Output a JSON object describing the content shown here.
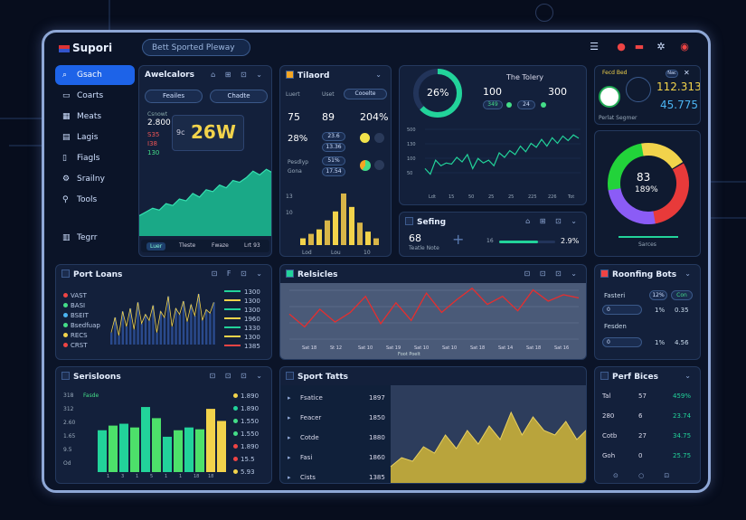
{
  "app": {
    "title": "Supori",
    "search": "Bett Sported Pleway"
  },
  "sidebar": {
    "items": [
      {
        "label": "Gsach",
        "icon": "search-icon",
        "active": true
      },
      {
        "label": "Coarts",
        "icon": "chat-icon"
      },
      {
        "label": "Meats",
        "icon": "calendar-icon"
      },
      {
        "label": "Lagis",
        "icon": "chart-icon"
      },
      {
        "label": "Fiagls",
        "icon": "doc-icon"
      },
      {
        "label": "Srailny",
        "icon": "settings-icon"
      },
      {
        "label": "Tools",
        "icon": "tools-icon"
      },
      {
        "label": "Tegrr",
        "icon": "book-icon"
      }
    ]
  },
  "avail": {
    "title": "Awelcalors",
    "filter1": "Feailes",
    "filter2": "Chadte",
    "small": "Csnowt",
    "val": "2.800",
    "items": [
      "S35",
      "I38",
      "130"
    ],
    "big": "26W",
    "big_prefix": "9c",
    "tabs": [
      "Luer",
      "Tleste",
      "Fwaze",
      "Lrt 93"
    ]
  },
  "tilaord": {
    "title": "Tilaord",
    "cols": [
      "Luert",
      "Uset",
      "Cooelte"
    ],
    "row1": [
      "75",
      "89",
      "204%"
    ],
    "row2": "28%",
    "badges": [
      "23.6",
      "13.36",
      "51%",
      "17.54"
    ],
    "sub": [
      "Pesdlyp",
      "Gona"
    ],
    "xt": [
      "Lod",
      "Lou",
      "10"
    ],
    "yt": [
      "13",
      "10"
    ]
  },
  "donut_top": {
    "value": "26%",
    "title": "The Tolery",
    "stats": [
      "100",
      "300"
    ],
    "chips": [
      "349",
      "24"
    ],
    "ylabels": [
      "500",
      "130",
      "100",
      "50"
    ],
    "xlabels": [
      "Ldt",
      "15",
      "50",
      "25",
      "25",
      "225",
      "226",
      "Tot"
    ]
  },
  "setting": {
    "title": "Sefing",
    "value": "68",
    "sub": "Teatle Note",
    "end": "2.9%",
    "minlabel": "16"
  },
  "tr": {
    "label": "Fecd Bed",
    "v1": "112.313",
    "v2": "45.775",
    "foot": "Perlat Segmer",
    "btn": "Nac"
  },
  "ring": {
    "value": "83",
    "pct": "189%",
    "foot": "Sarces"
  },
  "sport_loans": {
    "title": "Port Loans",
    "labels": [
      "VAST",
      "BASI",
      "BSEIT",
      "Bsedfuap",
      "RECS",
      "CRST"
    ],
    "legend": [
      "1300",
      "1300",
      "1300",
      "1960",
      "1330",
      "1300",
      "1385"
    ]
  },
  "relatives": {
    "title": "Relsicles",
    "xlabels": [
      "Sat 18",
      "St 12",
      "Sat 10",
      "Sat 19",
      "Sat 10",
      "Sat 10",
      "Sat 18",
      "Sat 14",
      "Sat 18",
      "Sat 16"
    ],
    "caption": "Foot Poelt"
  },
  "roofing": {
    "title": "Roonfing Bots",
    "labels": [
      "Fasteri",
      "Fesden"
    ],
    "chips": [
      "12%",
      "Con"
    ],
    "rows": [
      [
        "0",
        "1%",
        "0.35"
      ],
      [
        "0",
        "1%",
        "4.56"
      ]
    ]
  },
  "serisloons": {
    "title": "Serisloons",
    "legend": "Fasde",
    "ylabels": [
      "318",
      "312",
      "2.60",
      "1.65",
      "9.5",
      "Od"
    ],
    "xlabels": [
      "1",
      "3",
      "1",
      "5",
      "1",
      "1",
      "18",
      "18"
    ],
    "vals": [
      "1.890",
      "1.890",
      "1.550",
      "1.550",
      "1.890",
      "15.5",
      "5.93"
    ]
  },
  "sport_tatts": {
    "title": "Sport Tatts",
    "rows": [
      [
        "Fsatice",
        "1897"
      ],
      [
        "Feacer",
        "1850"
      ],
      [
        "Cotde",
        "1880"
      ],
      [
        "Fasi",
        "1860"
      ],
      [
        "Cists",
        "1385"
      ]
    ]
  },
  "perf": {
    "title": "Perf Bices",
    "rows": [
      [
        "Tal",
        "57",
        "459%"
      ],
      [
        "280",
        "6",
        "23.74"
      ],
      [
        "Cotb",
        "27",
        "34.75"
      ],
      [
        "Goh",
        "0",
        "25.75"
      ]
    ]
  },
  "chart_data": [
    {
      "type": "area",
      "title": "Awelcalors",
      "values": [
        22,
        26,
        30,
        28,
        35,
        33,
        40,
        38,
        46,
        42,
        50,
        48,
        55,
        52,
        60,
        58,
        63,
        70,
        66,
        72,
        68
      ]
    },
    {
      "type": "bar",
      "title": "Tilaord",
      "values": [
        6,
        10,
        14,
        22,
        30,
        46,
        34,
        20,
        12,
        6
      ]
    },
    {
      "type": "line",
      "title": "The Tolery",
      "values": [
        30,
        20,
        45,
        35,
        40,
        38,
        50,
        42,
        55,
        30,
        48,
        40,
        45,
        35,
        58,
        50,
        62,
        55,
        70,
        60,
        75,
        68,
        82,
        70,
        85,
        75,
        88,
        80,
        90,
        84
      ]
    },
    {
      "type": "bar",
      "title": "Port Loans",
      "values": [
        20,
        45,
        15,
        55,
        30,
        60,
        25,
        70,
        35,
        50,
        40,
        65,
        20,
        55,
        45,
        80,
        30,
        60,
        50,
        72,
        38,
        66,
        48,
        84,
        40,
        58,
        52,
        70
      ]
    },
    {
      "type": "line",
      "title": "Relsicles",
      "values": [
        38,
        22,
        44,
        28,
        40,
        60,
        26,
        52,
        30,
        64,
        40,
        56,
        70,
        50,
        60,
        42,
        68,
        54,
        62,
        58
      ]
    },
    {
      "type": "bar",
      "title": "Serisloons",
      "values": [
        45,
        50,
        52,
        48,
        70,
        58,
        38,
        45,
        48,
        46,
        68,
        55
      ]
    },
    {
      "type": "area",
      "title": "Sport Tatts",
      "values": [
        20,
        30,
        26,
        42,
        35,
        55,
        40,
        60,
        45,
        65,
        50,
        80,
        55,
        75,
        60,
        55,
        70,
        50,
        62
      ]
    }
  ]
}
